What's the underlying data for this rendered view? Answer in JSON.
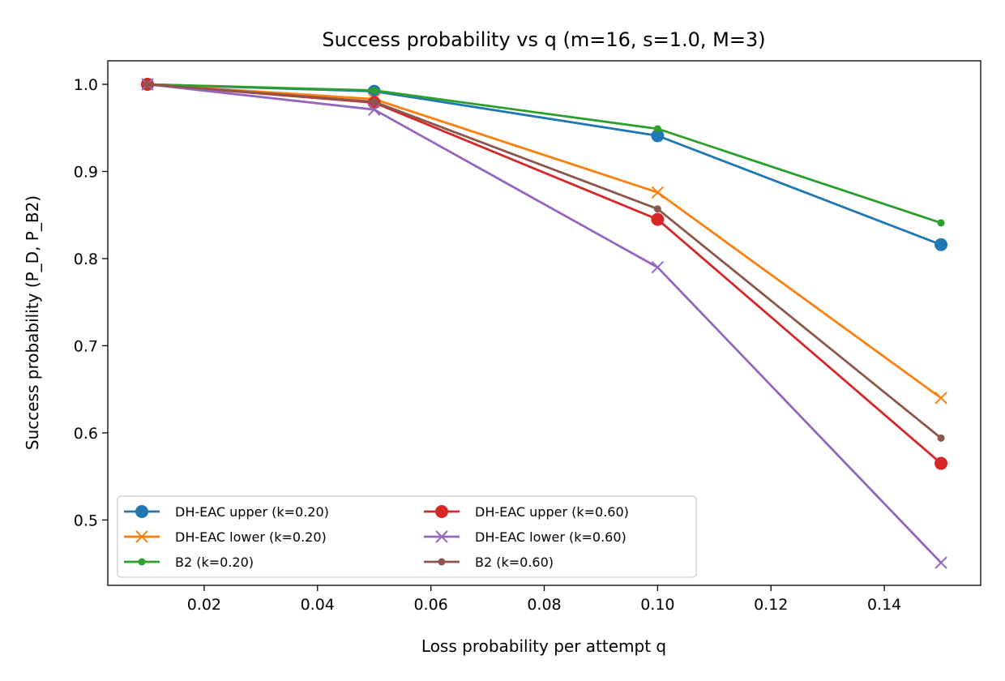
{
  "chart_data": {
    "type": "line",
    "title": "Success probability vs q  (m=16, s=1.0, M=3)",
    "xlabel": "Loss probability per attempt q",
    "ylabel": "Success probability (P_D, P_B2)",
    "xlim": [
      0.003,
      0.157
    ],
    "ylim": [
      0.425,
      1.027
    ],
    "xticks": [
      0.02,
      0.04,
      0.06,
      0.08,
      0.1,
      0.12,
      0.14
    ],
    "xtick_labels": [
      "0.02",
      "0.04",
      "0.06",
      "0.08",
      "0.10",
      "0.12",
      "0.14"
    ],
    "yticks": [
      0.5,
      0.6,
      0.7,
      0.8,
      0.9,
      1.0
    ],
    "ytick_labels": [
      "0.5",
      "0.6",
      "0.7",
      "0.8",
      "0.9",
      "1.0"
    ],
    "x": [
      0.01,
      0.05,
      0.1,
      0.15
    ],
    "legend_position": "lower-left",
    "grid": false,
    "series": [
      {
        "name": "DH-EAC upper (k=0.20)",
        "color": "#1f77b4",
        "marker": "circle",
        "values": [
          1.0,
          0.992,
          0.941,
          0.816
        ]
      },
      {
        "name": "DH-EAC lower (k=0.20)",
        "color": "#ff7f0e",
        "marker": "x",
        "values": [
          1.0,
          0.983,
          0.876,
          0.64
        ]
      },
      {
        "name": "B2 (k=0.20)",
        "color": "#2ca02c",
        "marker": "dot",
        "values": [
          1.0,
          0.993,
          0.949,
          0.841
        ]
      },
      {
        "name": "DH-EAC upper (k=0.60)",
        "color": "#d62728",
        "marker": "circle",
        "values": [
          1.0,
          0.979,
          0.845,
          0.565
        ]
      },
      {
        "name": "DH-EAC lower (k=0.60)",
        "color": "#9467bd",
        "marker": "x",
        "values": [
          1.0,
          0.971,
          0.79,
          0.451
        ]
      },
      {
        "name": "B2 (k=0.60)",
        "color": "#8c564b",
        "marker": "dot",
        "values": [
          1.0,
          0.98,
          0.857,
          0.594
        ]
      }
    ]
  }
}
